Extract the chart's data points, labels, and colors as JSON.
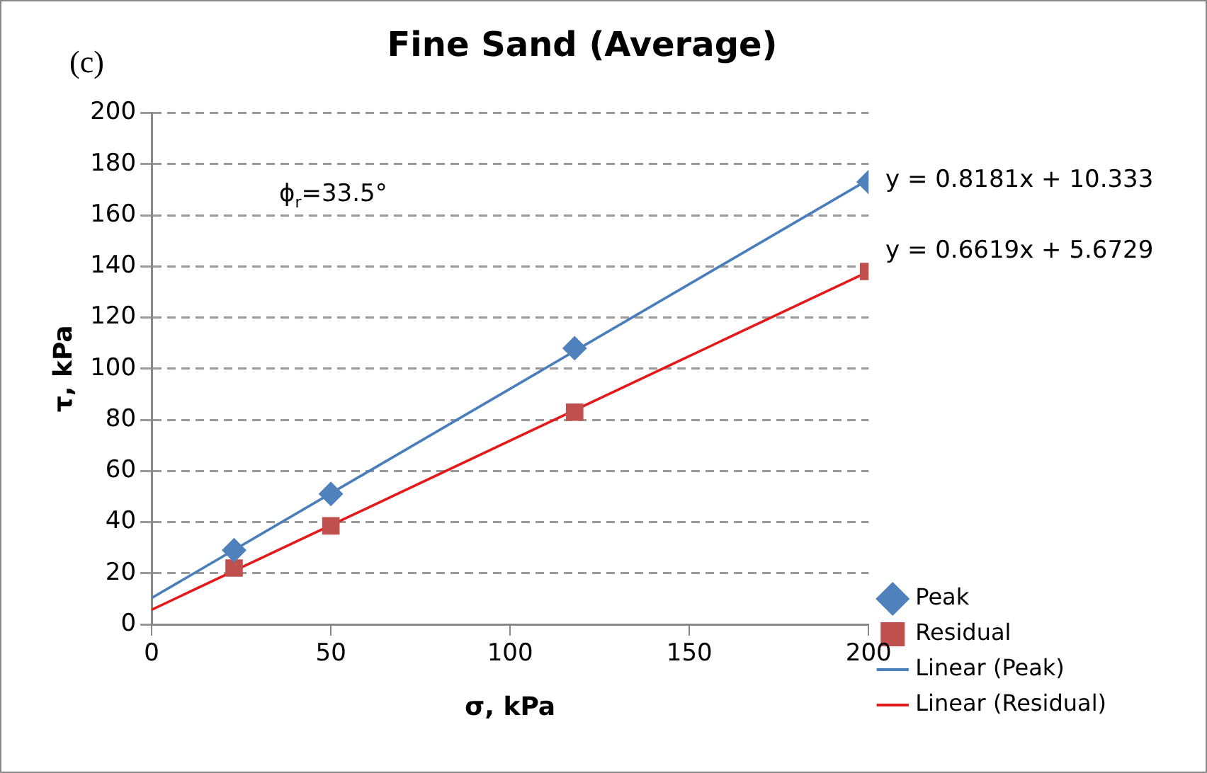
{
  "chart_data": {
    "type": "scatter",
    "title": "Fine Sand (Average)",
    "xlabel": "σ, kPa",
    "ylabel": "τ, kPa",
    "series": [
      {
        "name": "Peak",
        "color": "#4f81bd",
        "marker": "diamond",
        "x": [
          23,
          50,
          118,
          200
        ],
        "values": [
          29,
          51,
          108,
          173
        ]
      },
      {
        "name": "Residual",
        "color": "#c0504d",
        "marker": "square",
        "x": [
          23,
          50,
          118,
          200
        ],
        "values": [
          22,
          38.5,
          83,
          138
        ]
      },
      {
        "name": "Linear (Peak)",
        "type": "line",
        "color": "#4a7ebb",
        "marker": "none",
        "x": [
          0,
          200
        ],
        "values": [
          10.3,
          174
        ]
      },
      {
        "name": "Linear (Residual)",
        "type": "line",
        "color": "#e31a1c",
        "marker": "none",
        "x": [
          0,
          200
        ],
        "values": [
          5.7,
          138
        ]
      }
    ],
    "xlim": [
      0,
      200
    ],
    "xticks": [
      0,
      50,
      100,
      150,
      200
    ],
    "ylim": [
      0,
      200
    ],
    "yticks": [
      0,
      20,
      40,
      60,
      80,
      100,
      120,
      140,
      160,
      180,
      200
    ],
    "grid": "y",
    "legend": "right",
    "line_style": "solid",
    "annotations": [
      "(c)",
      "ϕ$_{r}$=33.5°",
      "y = 0.8181x + 10.333",
      "y = 0.6619x + 5.6729"
    ]
  }
}
